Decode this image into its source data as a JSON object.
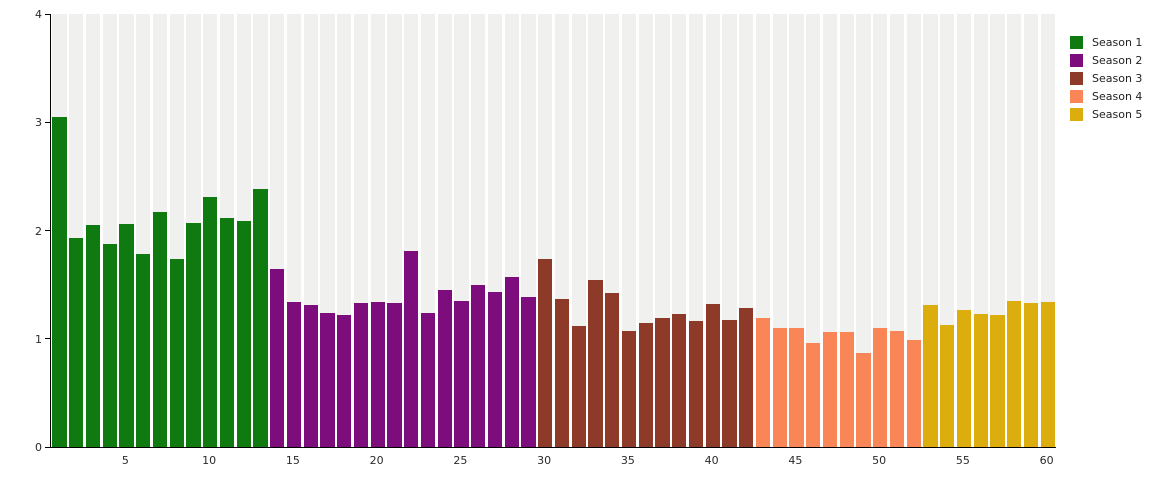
{
  "chart_data": {
    "type": "bar",
    "title": "",
    "xlabel": "",
    "ylabel": "",
    "ylim": [
      0,
      4
    ],
    "yticks": [
      0,
      1,
      2,
      3,
      4
    ],
    "xticks": [
      5,
      10,
      15,
      20,
      25,
      30,
      35,
      40,
      45,
      50,
      55,
      60
    ],
    "x_range": [
      1,
      60
    ],
    "grid": "column-stripes",
    "legend_position": "top-right",
    "colors": {
      "plot_background": "#ffffff",
      "stripe": "#f0f0ee",
      "axis": "#000000",
      "tick_text": "#2a2a2a"
    },
    "series": [
      {
        "name": "Season 1",
        "color": "#0e7a10",
        "first_episode": 1,
        "values": [
          3.05,
          1.93,
          2.05,
          1.88,
          2.06,
          1.78,
          2.17,
          1.74,
          2.07,
          2.31,
          2.12,
          2.09,
          2.38
        ]
      },
      {
        "name": "Season 2",
        "color": "#7d0d7d",
        "first_episode": 14,
        "values": [
          1.64,
          1.34,
          1.31,
          1.24,
          1.22,
          1.33,
          1.34,
          1.33,
          1.81,
          1.24,
          1.45,
          1.35,
          1.5,
          1.43,
          1.57,
          1.39
        ]
      },
      {
        "name": "Season 3",
        "color": "#8e3a28",
        "first_episode": 30,
        "values": [
          1.74,
          1.37,
          1.12,
          1.54,
          1.42,
          1.07,
          1.15,
          1.19,
          1.23,
          1.16,
          1.32,
          1.17,
          1.28
        ]
      },
      {
        "name": "Season 4",
        "color": "#fa8556",
        "first_episode": 43,
        "values": [
          1.19,
          1.1,
          1.1,
          0.96,
          1.06,
          1.06,
          0.87,
          1.1,
          1.07,
          0.99
        ]
      },
      {
        "name": "Season 5",
        "color": "#dbad0d",
        "first_episode": 53,
        "values": [
          1.31,
          1.13,
          1.27,
          1.23,
          1.22,
          1.35,
          1.33,
          1.34
        ]
      }
    ]
  }
}
